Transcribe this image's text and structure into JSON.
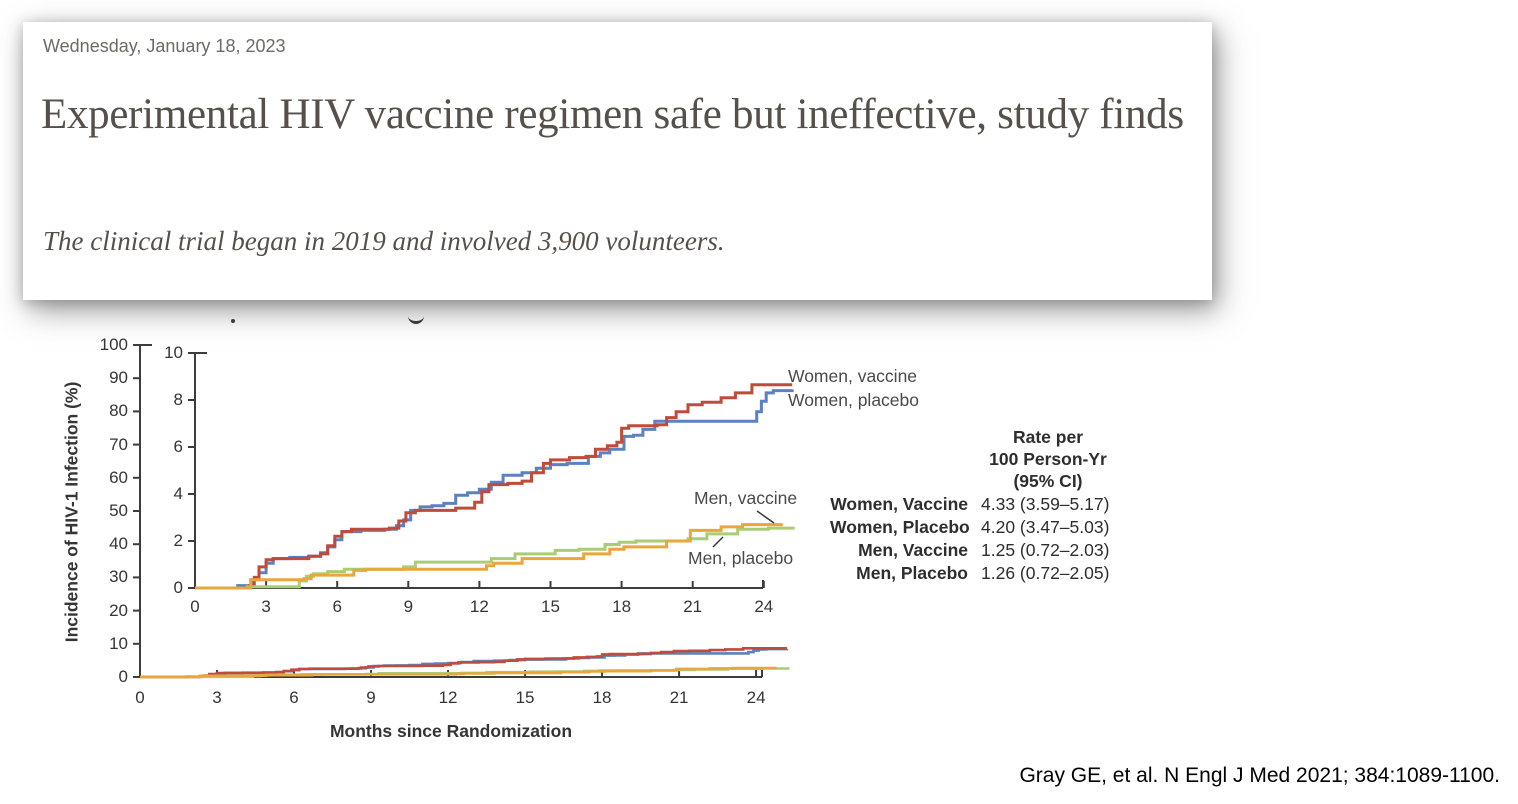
{
  "card": {
    "date": "Wednesday, January 18, 2023",
    "headline": "Experimental HIV vaccine regimen safe but ineffective, study finds",
    "subheadline": "The clinical trial began in 2019 and involved 3,900 volunteers."
  },
  "figure": {
    "ylabel": "Incidence of HIV-1 Infection (%)",
    "xlabel": "Months since Randomization",
    "curve_labels": {
      "women_vaccine": "Women, vaccine",
      "women_placebo": "Women, placebo",
      "men_vaccine": "Men, vaccine",
      "men_placebo": "Men, placebo"
    },
    "rate_table": {
      "header_lines": [
        "Rate per",
        "100 Person-Yr",
        "(95% CI)"
      ],
      "rows": [
        {
          "label": "Women, Vaccine",
          "value": "4.33 (3.59–5.17)"
        },
        {
          "label": "Women, Placebo",
          "value": "4.20 (3.47–5.03)"
        },
        {
          "label": "Men, Vaccine",
          "value": "1.25 (0.72–2.03)"
        },
        {
          "label": "Men, Placebo",
          "value": "1.26 (0.72–2.05)"
        }
      ]
    },
    "citation": "Gray GE, et al. N Engl J Med 2021; 384:1089-1100."
  },
  "chart_data": {
    "type": "line",
    "style": "kaplan-meier cumulative incidence step curves; main axes with magnified inset",
    "title": "",
    "xlabel": "Months since Randomization",
    "ylabel": "Incidence of HIV-1 Infection (%)",
    "legend_position": "labels at right end of curves",
    "grid": false,
    "main_axis": {
      "xlim": [
        0,
        25.3
      ],
      "ylim": [
        0,
        100
      ],
      "xticks": [
        0,
        3,
        6,
        9,
        12,
        15,
        18,
        21,
        24
      ],
      "yticks": [
        0,
        10,
        20,
        30,
        40,
        50,
        60,
        70,
        80,
        90,
        100
      ]
    },
    "inset_axis": {
      "xlim": [
        0,
        25.3
      ],
      "ylim": [
        0,
        10
      ],
      "xticks": [
        0,
        3,
        6,
        9,
        12,
        15,
        18,
        21,
        24
      ],
      "yticks": [
        0,
        2,
        4,
        6,
        8,
        10
      ]
    },
    "series": [
      {
        "name": "Women, placebo",
        "color": "#5b81c0",
        "rate_per_100py": "4.20 (3.47–5.03)",
        "points": [
          [
            0,
            0
          ],
          [
            1.8,
            0.1
          ],
          [
            2.4,
            0.35
          ],
          [
            2.7,
            0.65
          ],
          [
            3.0,
            1.05
          ],
          [
            3.3,
            1.25
          ],
          [
            4.0,
            1.3
          ],
          [
            4.8,
            1.35
          ],
          [
            5.3,
            1.5
          ],
          [
            5.6,
            1.75
          ],
          [
            5.9,
            2.05
          ],
          [
            6.2,
            2.4
          ],
          [
            7.0,
            2.45
          ],
          [
            8.0,
            2.5
          ],
          [
            8.5,
            2.65
          ],
          [
            8.8,
            2.9
          ],
          [
            9.1,
            3.3
          ],
          [
            9.5,
            3.45
          ],
          [
            10.0,
            3.5
          ],
          [
            10.5,
            3.6
          ],
          [
            11.0,
            3.95
          ],
          [
            11.5,
            4.05
          ],
          [
            12.0,
            4.2
          ],
          [
            12.5,
            4.5
          ],
          [
            13.0,
            4.8
          ],
          [
            13.8,
            4.9
          ],
          [
            14.4,
            5.1
          ],
          [
            15.0,
            5.25
          ],
          [
            15.7,
            5.3
          ],
          [
            16.6,
            5.6
          ],
          [
            17.1,
            5.75
          ],
          [
            17.5,
            5.9
          ],
          [
            18.1,
            6.45
          ],
          [
            18.5,
            6.5
          ],
          [
            18.9,
            6.75
          ],
          [
            19.4,
            7.1
          ],
          [
            23.4,
            7.1
          ],
          [
            23.7,
            7.5
          ],
          [
            23.9,
            7.95
          ],
          [
            24.1,
            8.3
          ],
          [
            24.4,
            8.4
          ],
          [
            25.2,
            8.45
          ]
        ]
      },
      {
        "name": "Women, vaccine",
        "color": "#bf4b3a",
        "rate_per_100py": "4.33 (3.59–5.17)",
        "points": [
          [
            0,
            0
          ],
          [
            2.3,
            0.1
          ],
          [
            2.5,
            0.45
          ],
          [
            2.7,
            0.9
          ],
          [
            3.0,
            1.2
          ],
          [
            3.3,
            1.25
          ],
          [
            4.8,
            1.35
          ],
          [
            5.3,
            1.45
          ],
          [
            5.6,
            1.8
          ],
          [
            5.9,
            2.2
          ],
          [
            6.2,
            2.4
          ],
          [
            6.6,
            2.5
          ],
          [
            8.2,
            2.55
          ],
          [
            8.6,
            2.85
          ],
          [
            8.9,
            3.2
          ],
          [
            9.3,
            3.3
          ],
          [
            10.0,
            3.3
          ],
          [
            11.0,
            3.4
          ],
          [
            11.8,
            3.65
          ],
          [
            12.1,
            4.1
          ],
          [
            12.4,
            4.4
          ],
          [
            13.2,
            4.45
          ],
          [
            13.8,
            4.55
          ],
          [
            14.2,
            4.9
          ],
          [
            14.7,
            5.3
          ],
          [
            15.0,
            5.45
          ],
          [
            15.8,
            5.55
          ],
          [
            16.5,
            5.6
          ],
          [
            16.9,
            5.9
          ],
          [
            17.4,
            6.05
          ],
          [
            17.8,
            6.2
          ],
          [
            18.0,
            6.8
          ],
          [
            18.3,
            6.9
          ],
          [
            19.5,
            6.95
          ],
          [
            19.9,
            7.25
          ],
          [
            20.3,
            7.5
          ],
          [
            20.8,
            7.8
          ],
          [
            21.4,
            7.9
          ],
          [
            22.2,
            8.1
          ],
          [
            22.8,
            8.3
          ],
          [
            23.5,
            8.65
          ],
          [
            25.2,
            8.65
          ]
        ]
      },
      {
        "name": "Men, placebo",
        "color": "#a9ce72",
        "rate_per_100py": "1.26 (0.72–2.05)",
        "points": [
          [
            0,
            0
          ],
          [
            2.2,
            0.05
          ],
          [
            4.4,
            0.3
          ],
          [
            4.7,
            0.5
          ],
          [
            5.0,
            0.6
          ],
          [
            5.6,
            0.7
          ],
          [
            6.3,
            0.8
          ],
          [
            8.8,
            0.9
          ],
          [
            9.3,
            1.1
          ],
          [
            12.5,
            1.25
          ],
          [
            13.5,
            1.45
          ],
          [
            15.2,
            1.6
          ],
          [
            16.2,
            1.65
          ],
          [
            17.3,
            1.85
          ],
          [
            17.9,
            1.95
          ],
          [
            18.6,
            2.0
          ],
          [
            20.8,
            2.1
          ],
          [
            21.6,
            2.3
          ],
          [
            22.9,
            2.5
          ],
          [
            24.2,
            2.55
          ],
          [
            25.3,
            2.55
          ]
        ]
      },
      {
        "name": "Men, vaccine",
        "color": "#e8a63b",
        "rate_per_100py": "1.25 (0.72–2.03)",
        "points": [
          [
            0,
            0
          ],
          [
            2.35,
            0.35
          ],
          [
            4.6,
            0.4
          ],
          [
            4.9,
            0.55
          ],
          [
            6.7,
            0.75
          ],
          [
            7.2,
            0.8
          ],
          [
            12.3,
            0.95
          ],
          [
            12.6,
            1.05
          ],
          [
            13.8,
            1.25
          ],
          [
            16.4,
            1.45
          ],
          [
            17.5,
            1.65
          ],
          [
            18.1,
            1.75
          ],
          [
            19.9,
            2.0
          ],
          [
            20.9,
            2.45
          ],
          [
            22.2,
            2.6
          ],
          [
            23.1,
            2.7
          ],
          [
            24.8,
            2.7
          ]
        ]
      }
    ]
  }
}
